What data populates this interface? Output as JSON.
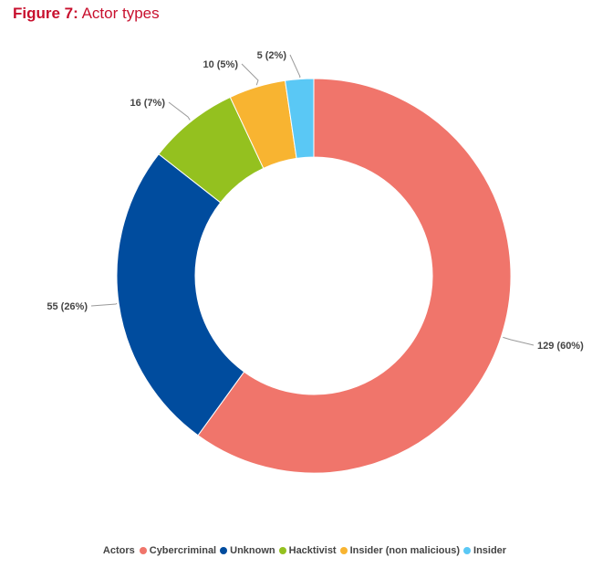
{
  "figure": {
    "prefix": "Figure 7:",
    "title": "Actor types"
  },
  "chart_data": {
    "type": "pie",
    "style": "donut",
    "categories": [
      "Cybercriminal",
      "Unknown",
      "Hacktivist",
      "Insider (non malicious)",
      "Insider"
    ],
    "values": [
      129,
      55,
      16,
      10,
      5
    ],
    "percentages": [
      60,
      26,
      7,
      5,
      2
    ],
    "data_labels": [
      "129 (60%)",
      "55 (26%)",
      "16 (7%)",
      "10 (5%)",
      "5 (2%)"
    ],
    "colors": [
      "#f0756b",
      "#004c9e",
      "#94c11f",
      "#f8b431",
      "#5ac8f5"
    ],
    "legend_title": "Actors",
    "legend_position": "bottom-center"
  }
}
